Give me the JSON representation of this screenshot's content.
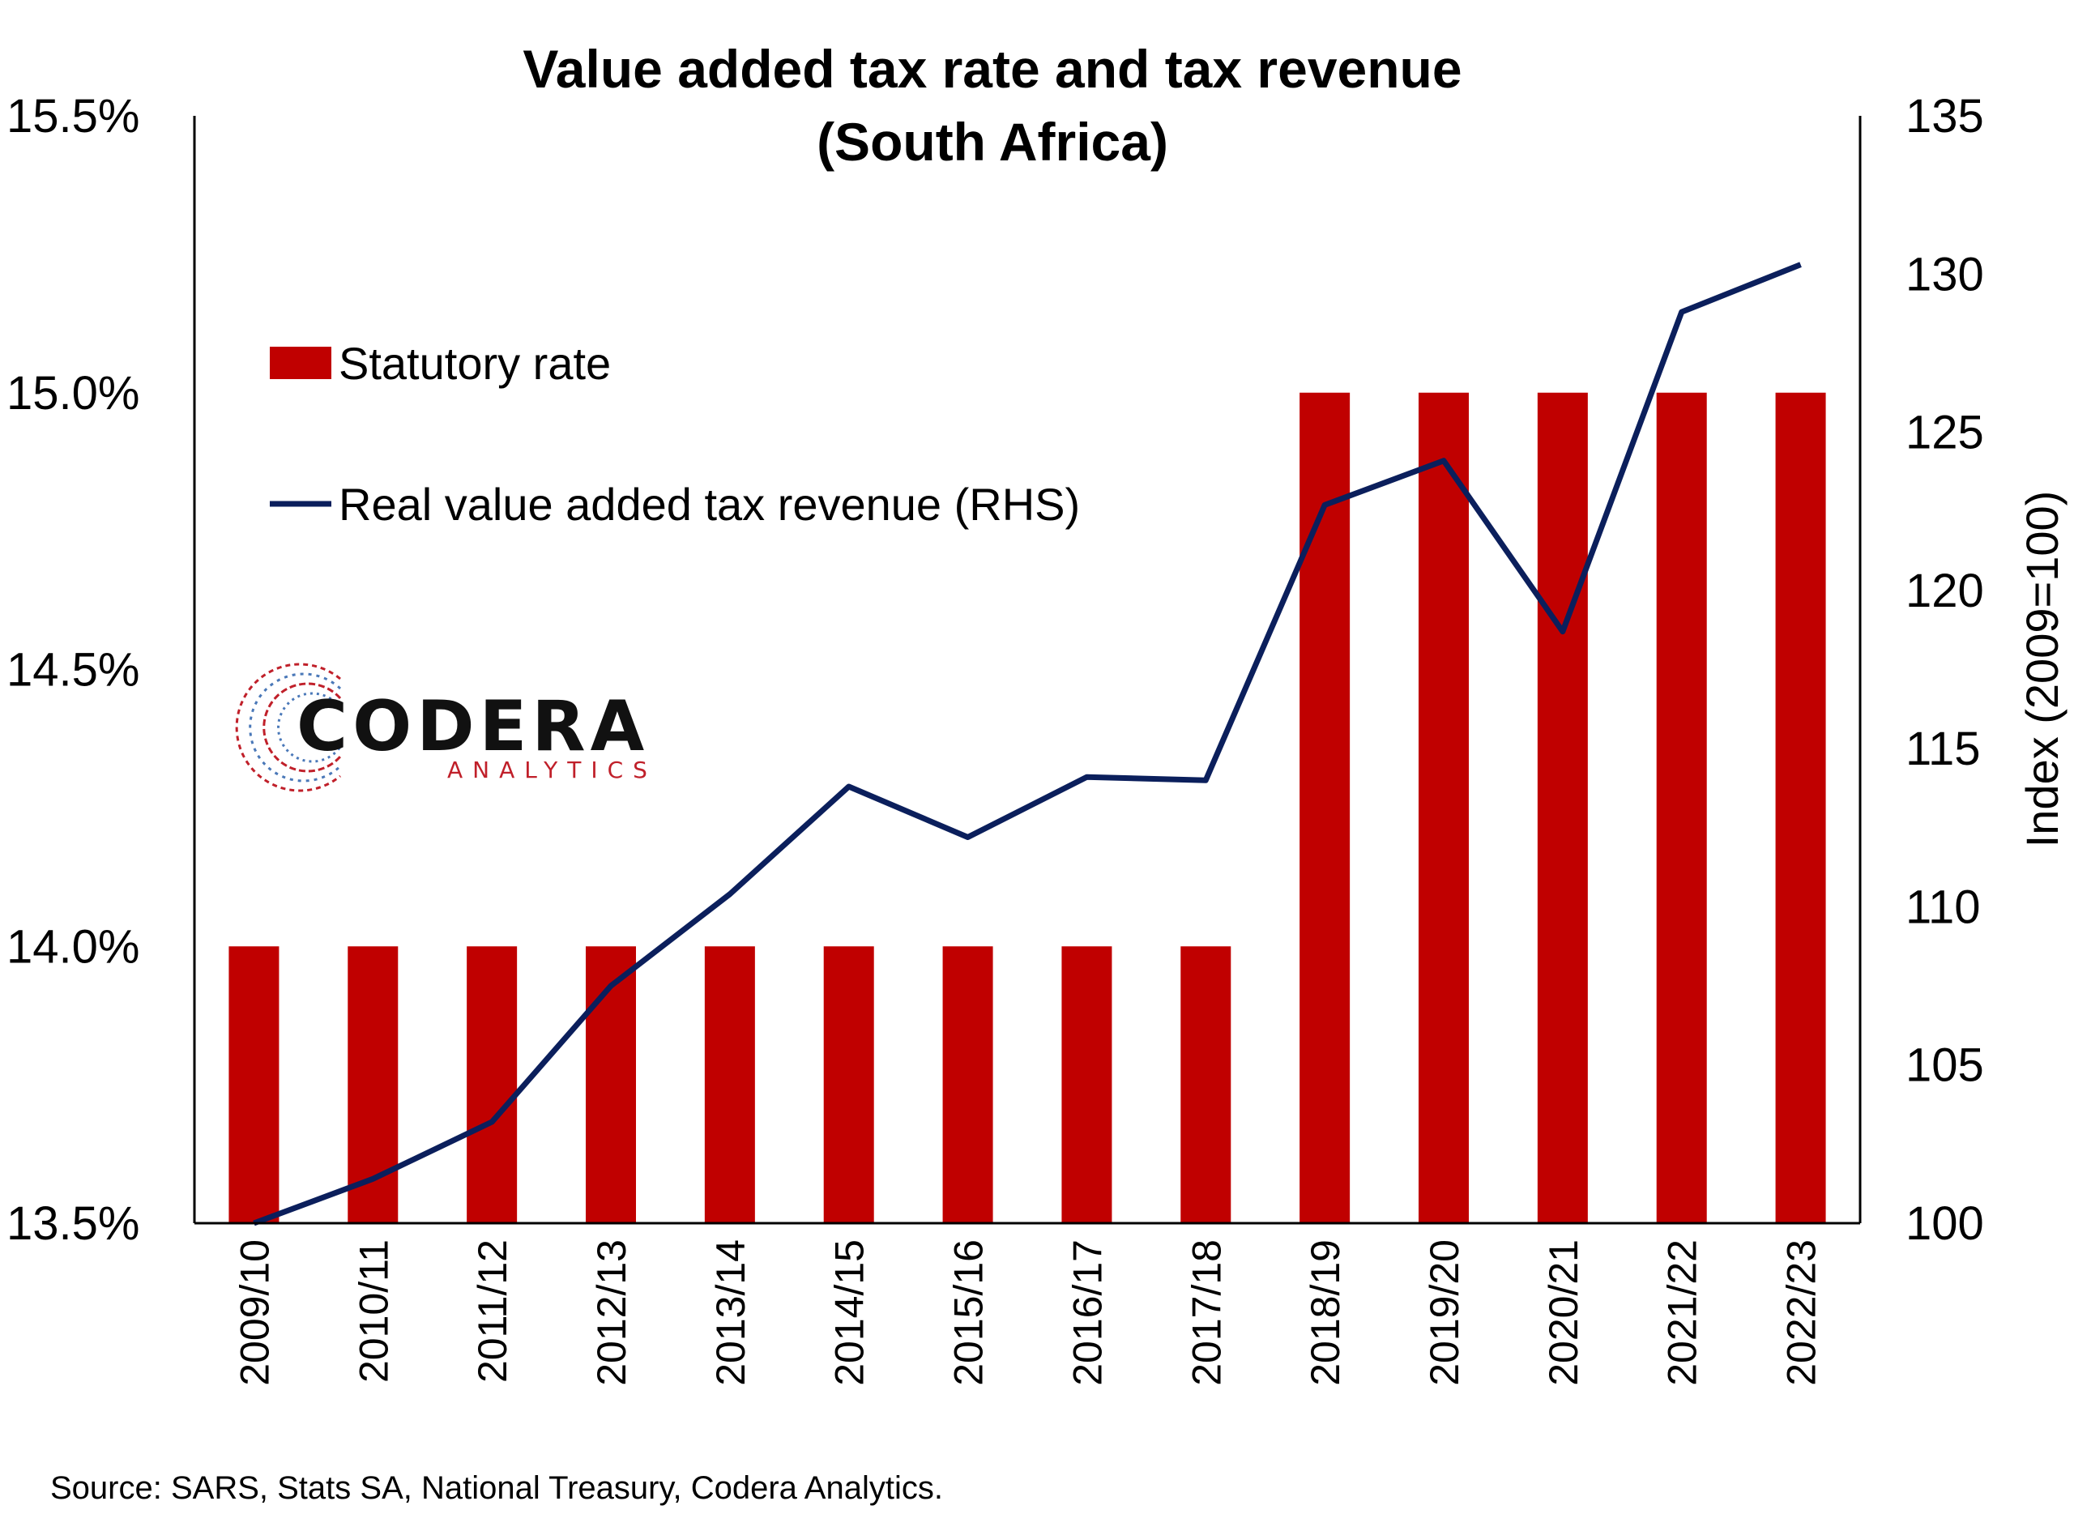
{
  "chart_data": {
    "type": "bar",
    "title": "Value added tax rate and tax revenue",
    "subtitle": "(South Africa)",
    "categories": [
      "2009/10",
      "2010/11",
      "2011/12",
      "2012/13",
      "2013/14",
      "2014/15",
      "2015/16",
      "2016/17",
      "2017/18",
      "2018/19",
      "2019/20",
      "2020/21",
      "2021/22",
      "2022/23"
    ],
    "series": [
      {
        "name": "Statutory rate",
        "type": "bar",
        "axis": "left",
        "color": "#c00000",
        "values": [
          14.0,
          14.0,
          14.0,
          14.0,
          14.0,
          14.0,
          14.0,
          14.0,
          14.0,
          15.0,
          15.0,
          15.0,
          15.0,
          15.0
        ]
      },
      {
        "name": "Real value added tax revenue (RHS)",
        "type": "line",
        "axis": "right",
        "color": "#0b1f5c",
        "values": [
          100.0,
          101.4,
          103.2,
          107.5,
          110.4,
          113.8,
          112.2,
          114.1,
          114.0,
          122.7,
          124.1,
          118.7,
          128.8,
          130.3
        ]
      }
    ],
    "y_left": {
      "ylim": [
        13.5,
        15.5
      ],
      "ticks": [
        "13.5%",
        "14.0%",
        "14.5%",
        "15.0%",
        "15.5%"
      ]
    },
    "y_right": {
      "ylim": [
        100,
        135
      ],
      "ticks": [
        "100",
        "105",
        "110",
        "115",
        "120",
        "125",
        "130",
        "135"
      ],
      "label": "Index (2009=100)"
    },
    "legend_position": "top-left",
    "grid": false
  },
  "logo": {
    "name": "CODERA",
    "subname": "ANALYTICS"
  },
  "source": "Source: SARS, Stats SA, National Treasury, Codera Analytics."
}
